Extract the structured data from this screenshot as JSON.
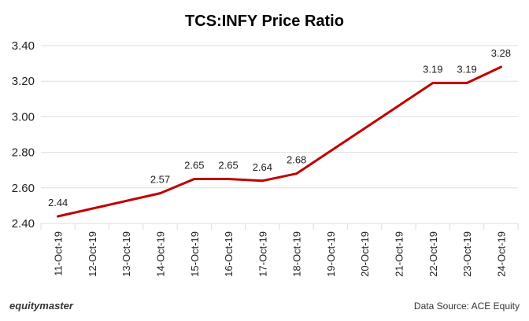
{
  "chart_data": {
    "type": "line",
    "title": "TCS:INFY Price Ratio",
    "xlabel": "",
    "ylabel": "",
    "categories": [
      "11-Oct-19",
      "12-Oct-19",
      "13-Oct-19",
      "14-Oct-19",
      "15-Oct-19",
      "16-Oct-19",
      "17-Oct-19",
      "18-Oct-19",
      "19-Oct-19",
      "20-Oct-19",
      "21-Oct-19",
      "22-Oct-19",
      "23-Oct-19",
      "24-Oct-19"
    ],
    "series": [
      {
        "name": "TCS:INFY Price Ratio",
        "color": "#c00000",
        "x": [
          "11-Oct-19",
          "14-Oct-19",
          "15-Oct-19",
          "16-Oct-19",
          "17-Oct-19",
          "18-Oct-19",
          "22-Oct-19",
          "23-Oct-19",
          "24-Oct-19"
        ],
        "values": [
          2.44,
          2.57,
          2.65,
          2.65,
          2.64,
          2.68,
          3.19,
          3.19,
          3.28
        ],
        "labels": [
          "2.44",
          "2.57",
          "2.65",
          "2.65",
          "2.64",
          "2.68",
          "3.19",
          "3.19",
          "3.28"
        ]
      }
    ],
    "yticks": [
      "2.40",
      "2.60",
      "2.80",
      "3.00",
      "3.20",
      "3.40"
    ],
    "ylim": [
      2.4,
      3.4
    ],
    "grid": true,
    "legend": "none"
  },
  "branding": {
    "logo_text": "equitymaster",
    "source_text": "Data Source: ACE Equity"
  }
}
